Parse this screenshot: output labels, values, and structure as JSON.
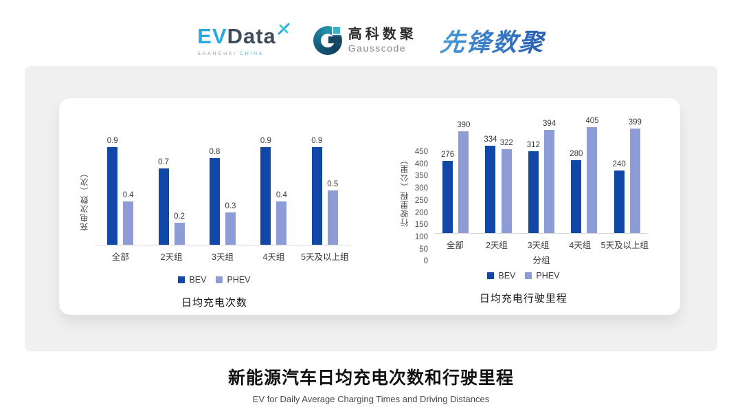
{
  "header": {
    "evdata": {
      "ev": "EV",
      "data": "Data",
      "sub_left": "SHANGHAI",
      "sub_right": "CHINA"
    },
    "gausscode": {
      "cn": "高科数聚",
      "en": "Gausscode"
    },
    "xianfeng": {
      "text": "先锋数聚"
    }
  },
  "colors": {
    "bev": "#1148A8",
    "phev": "#8E9CD6",
    "axis_line": "#D8D8D8",
    "brand_lightblue": "#2AA9E0",
    "brand_dark": "#3D4D5C",
    "brand_teal": "#35B6C8"
  },
  "chart_data": [
    {
      "type": "bar",
      "title": "日均充电次数",
      "xlabel": "",
      "ylabel": "充电次数（次）",
      "categories": [
        "全部",
        "2天组",
        "3天组",
        "4天组",
        "5天及以上组"
      ],
      "series": [
        {
          "name": "BEV",
          "values": [
            0.9,
            0.7,
            0.8,
            0.9,
            0.9
          ]
        },
        {
          "name": "PHEV",
          "values": [
            0.4,
            0.2,
            0.3,
            0.4,
            0.5
          ]
        }
      ],
      "ylim": [
        0,
        1.0
      ],
      "y_ticks": [],
      "grid": false,
      "value_labels": true,
      "legend_position": "bottom"
    },
    {
      "type": "bar",
      "title": "日均充电行驶里程",
      "xlabel": "分组",
      "ylabel": "行驶里程（公里）",
      "categories": [
        "全部",
        "2天组",
        "3天组",
        "4天组",
        "5天及以上组"
      ],
      "series": [
        {
          "name": "BEV",
          "values": [
            276,
            334,
            312,
            280,
            240
          ]
        },
        {
          "name": "PHEV",
          "values": [
            390,
            322,
            394,
            405,
            399
          ]
        }
      ],
      "ylim": [
        0,
        450
      ],
      "y_ticks": [
        450,
        400,
        350,
        300,
        250,
        200,
        150,
        100,
        50,
        0
      ],
      "grid": false,
      "value_labels": true,
      "legend_position": "bottom"
    }
  ],
  "footer": {
    "title": "新能源汽车日均充电次数和行驶里程",
    "subtitle": "EV for Daily Average Charging Times and Driving Distances"
  }
}
